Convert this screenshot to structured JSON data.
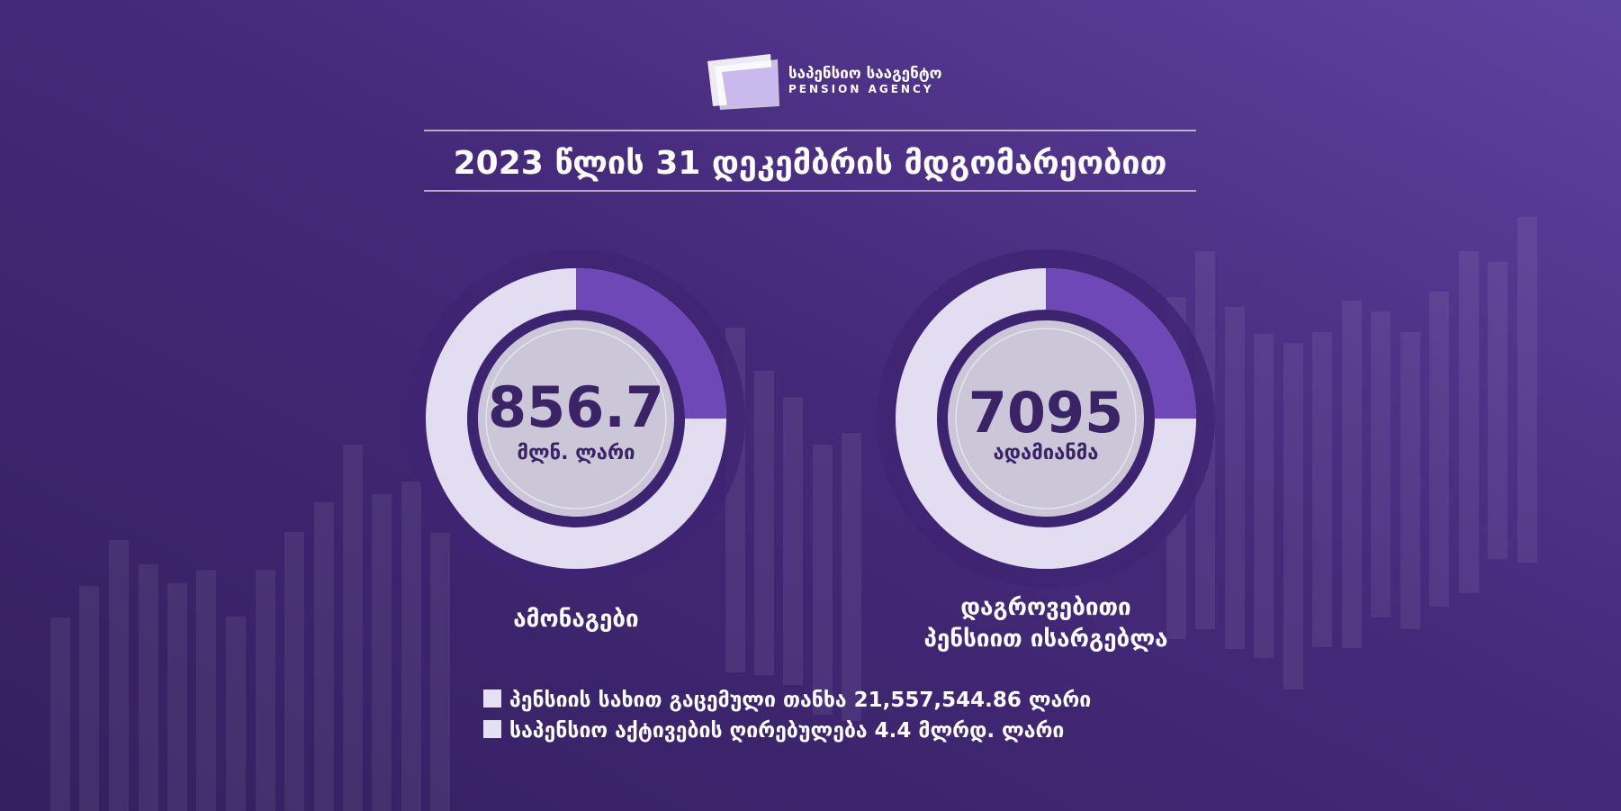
{
  "logo": {
    "name_ka": "საპენსიო სააგენტო",
    "name_en": "PENSION AGENCY"
  },
  "title": "2023 წლის 31 დეკემბრის მდგომარეობით",
  "indicators": [
    {
      "value": 856.7,
      "unit": "მლნ. ლარი",
      "caption": [
        "ამონაგები"
      ]
    },
    {
      "value": 7095,
      "unit": "ადამიანმა",
      "caption": [
        "დაგროვებითი",
        "პენსიით ისარგებლა"
      ]
    }
  ],
  "notes": [
    "პენსიის სახით გაცემული თანხა 21,557,544.86 ლარი",
    "საპენსიო აქტივების ღირებულება 4.4 მლრდ. ლარი"
  ]
}
